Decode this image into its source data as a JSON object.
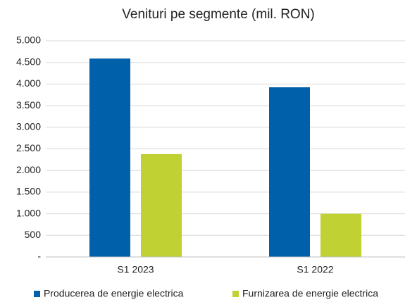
{
  "chart_data": {
    "type": "bar",
    "title": "Venituri pe segmente (mil. RON)",
    "categories": [
      "S1 2023",
      "S1 2022"
    ],
    "series": [
      {
        "name": "Producerea de energie electrica",
        "color": "#0060aa",
        "values": [
          4590,
          3925
        ]
      },
      {
        "name": "Furnizarea de energie electrica",
        "color": "#bfd133",
        "values": [
          2380,
          1000
        ]
      }
    ],
    "ylim": [
      0,
      5000
    ],
    "yticks": [
      {
        "value": 0,
        "label": "-"
      },
      500,
      {
        "value": 1000,
        "label": "1.000"
      },
      {
        "value": 1500,
        "label": "1.500"
      },
      {
        "value": 2000,
        "label": "2.000"
      },
      {
        "value": 2500,
        "label": "2.500"
      },
      {
        "value": 3000,
        "label": "3.000"
      },
      {
        "value": 3500,
        "label": "3.500"
      },
      {
        "value": 4000,
        "label": "4.000"
      },
      {
        "value": 4500,
        "label": "4.500"
      },
      {
        "value": 5000,
        "label": "5.000"
      }
    ],
    "grid": true,
    "legend": "bottom"
  }
}
